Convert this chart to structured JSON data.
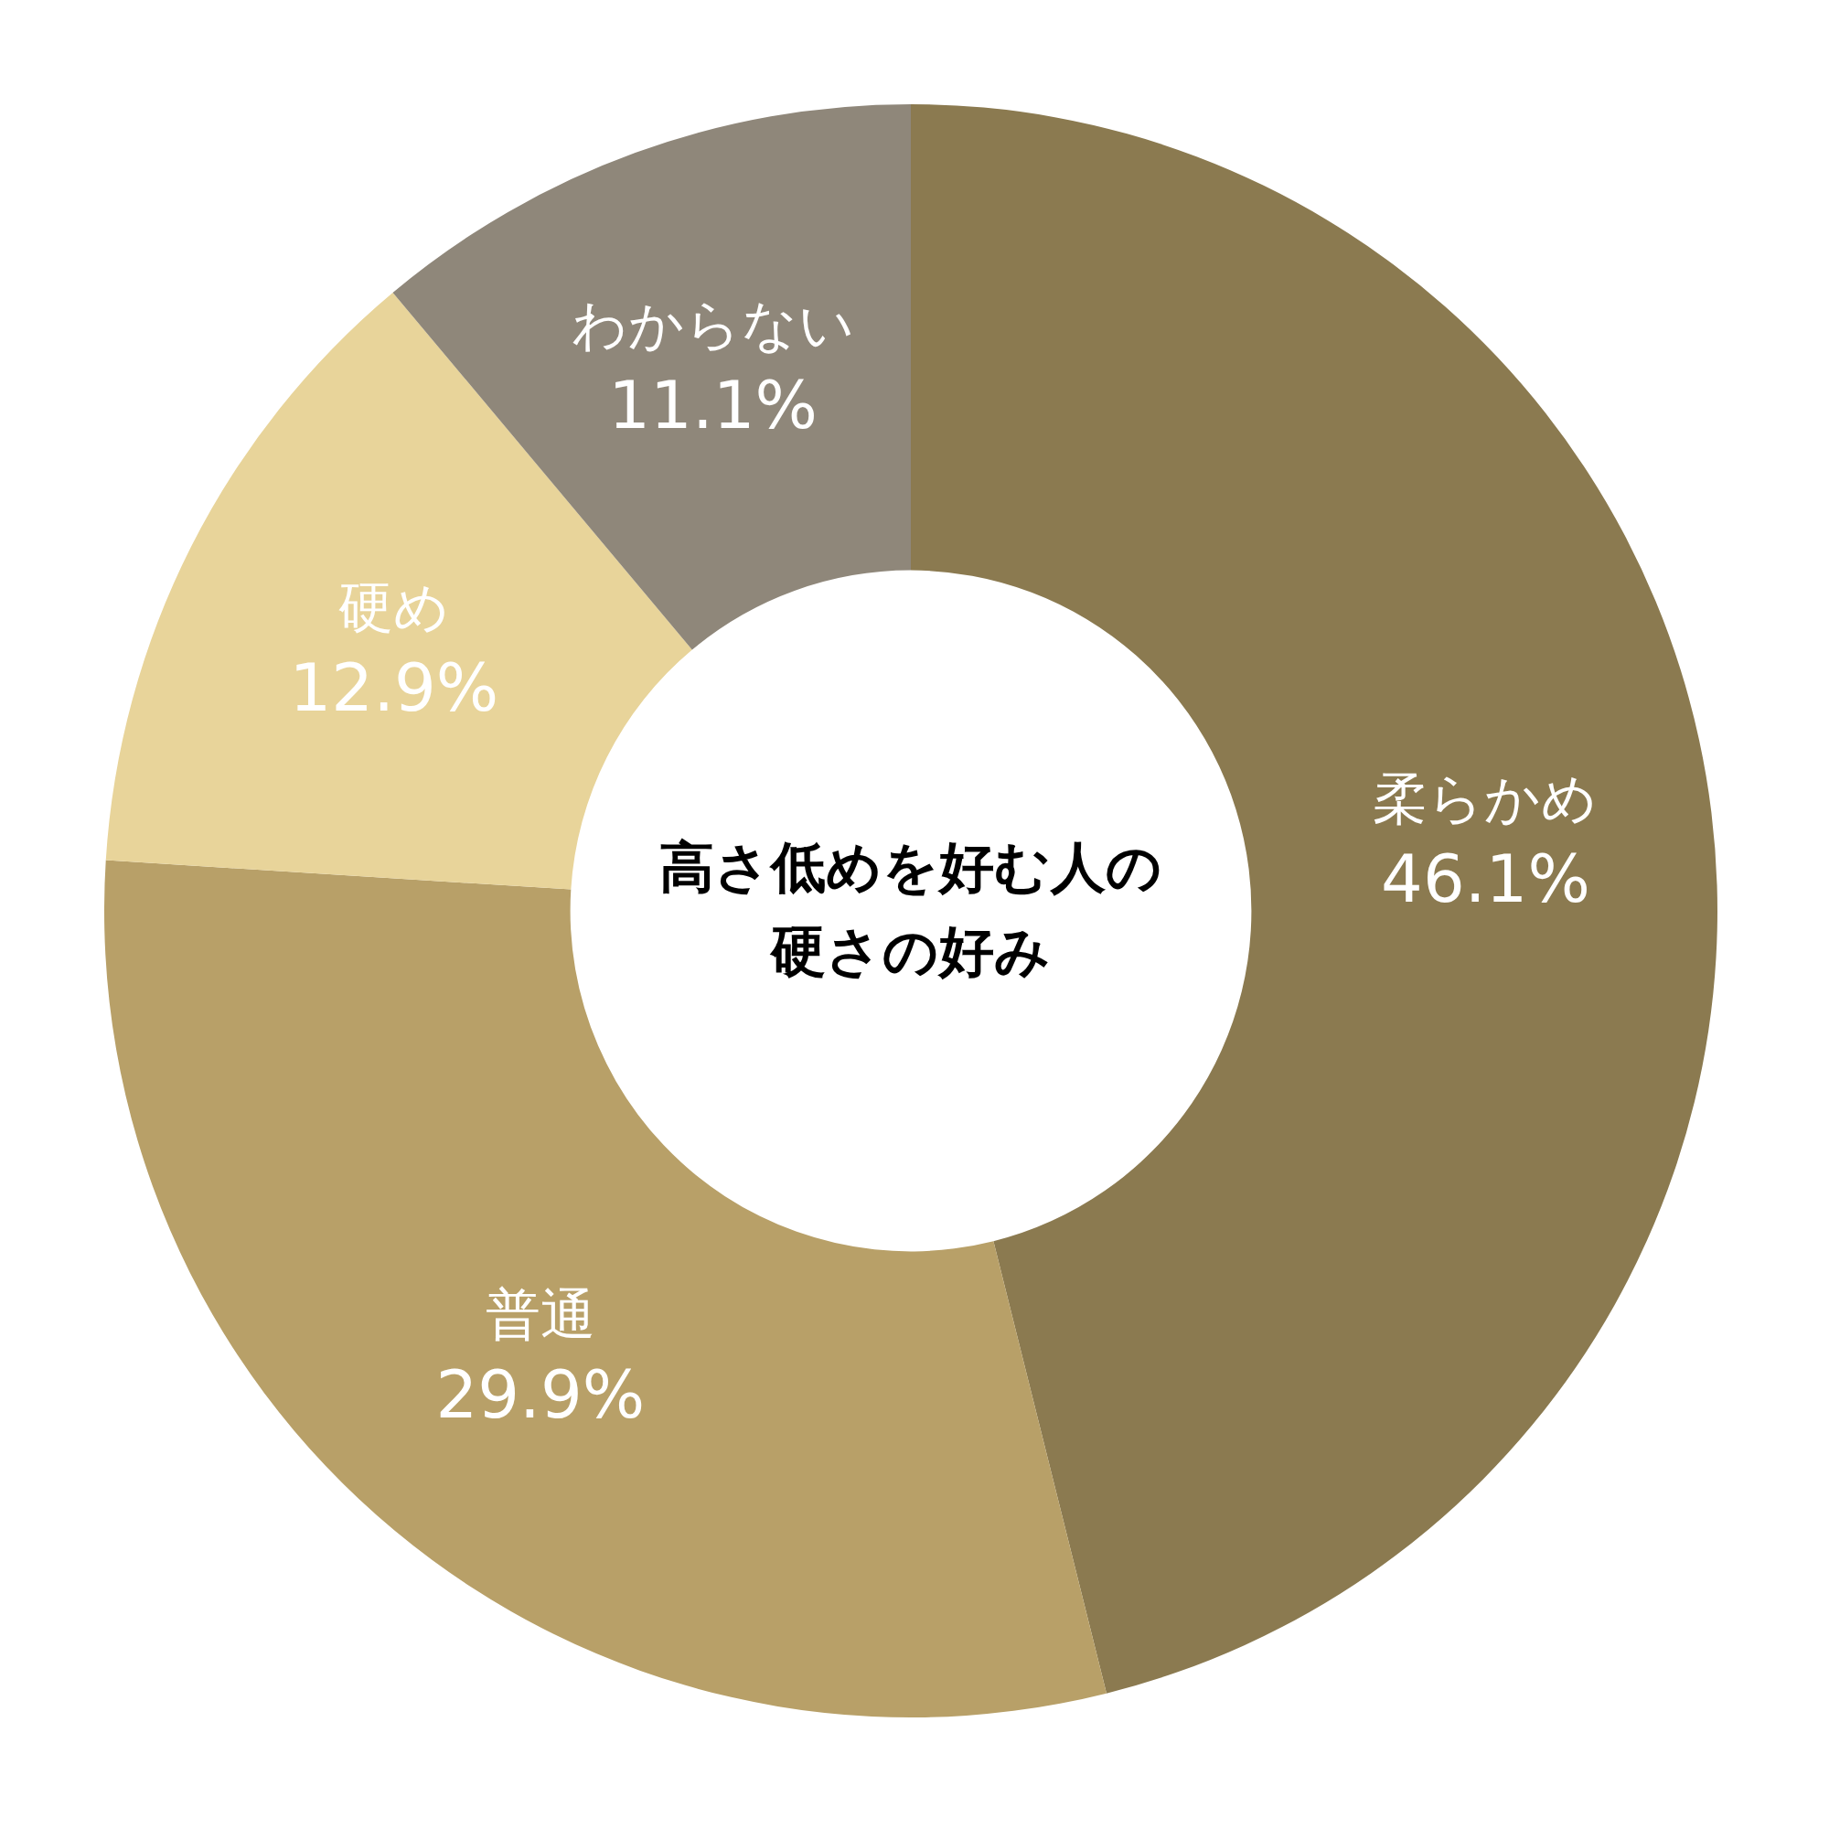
{
  "chart_data": {
    "type": "donut",
    "title": "高さ低めを好む人の硬さの好み",
    "categories": [
      "柔らかめ",
      "普通",
      "硬め",
      "わからない"
    ],
    "values": [
      46.1,
      29.9,
      12.9,
      11.1
    ],
    "colors": [
      "#8b7a50",
      "#b8a068",
      "#e8d49a",
      "#8f877a"
    ],
    "value_labels": [
      "46.1%",
      "29.9%",
      "12.9%",
      "11.1%"
    ],
    "legend": false
  }
}
